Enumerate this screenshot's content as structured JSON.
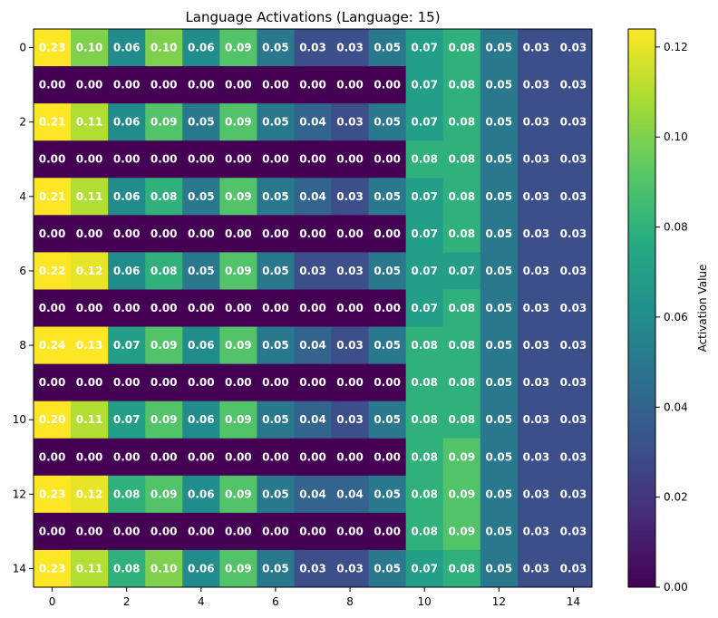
{
  "chart_data": {
    "type": "heatmap",
    "title": "Language Activations (Language: 15)",
    "colorbar_label": "Activation Value",
    "colorbar_ticks": [
      "0.00",
      "0.02",
      "0.04",
      "0.06",
      "0.08",
      "0.10",
      "0.12"
    ],
    "colorbar_range": [
      0,
      0.124
    ],
    "colormap": "viridis",
    "x_ticks": [
      0,
      2,
      4,
      6,
      8,
      10,
      12,
      14
    ],
    "y_ticks": [
      0,
      2,
      4,
      6,
      8,
      10,
      12,
      14
    ],
    "rows": 15,
    "cols": 15,
    "values": [
      [
        0.23,
        0.1,
        0.06,
        0.1,
        0.06,
        0.09,
        0.05,
        0.03,
        0.03,
        0.05,
        0.07,
        0.08,
        0.05,
        0.03,
        0.03
      ],
      [
        0.0,
        0.0,
        0.0,
        0.0,
        0.0,
        0.0,
        0.0,
        0.0,
        0.0,
        0.0,
        0.07,
        0.08,
        0.05,
        0.03,
        0.03
      ],
      [
        0.21,
        0.11,
        0.06,
        0.09,
        0.05,
        0.09,
        0.05,
        0.04,
        0.03,
        0.05,
        0.07,
        0.08,
        0.05,
        0.03,
        0.03
      ],
      [
        0.0,
        0.0,
        0.0,
        0.0,
        0.0,
        0.0,
        0.0,
        0.0,
        0.0,
        0.0,
        0.08,
        0.08,
        0.05,
        0.03,
        0.03
      ],
      [
        0.21,
        0.11,
        0.06,
        0.08,
        0.05,
        0.09,
        0.05,
        0.04,
        0.03,
        0.05,
        0.07,
        0.08,
        0.05,
        0.03,
        0.03
      ],
      [
        0.0,
        0.0,
        0.0,
        0.0,
        0.0,
        0.0,
        0.0,
        0.0,
        0.0,
        0.0,
        0.07,
        0.08,
        0.05,
        0.03,
        0.03
      ],
      [
        0.22,
        0.12,
        0.06,
        0.08,
        0.05,
        0.09,
        0.05,
        0.03,
        0.03,
        0.05,
        0.07,
        0.07,
        0.05,
        0.03,
        0.03
      ],
      [
        0.0,
        0.0,
        0.0,
        0.0,
        0.0,
        0.0,
        0.0,
        0.0,
        0.0,
        0.0,
        0.07,
        0.08,
        0.05,
        0.03,
        0.03
      ],
      [
        0.24,
        0.13,
        0.07,
        0.09,
        0.06,
        0.09,
        0.05,
        0.04,
        0.03,
        0.05,
        0.08,
        0.08,
        0.05,
        0.03,
        0.03
      ],
      [
        0.0,
        0.0,
        0.0,
        0.0,
        0.0,
        0.0,
        0.0,
        0.0,
        0.0,
        0.0,
        0.08,
        0.08,
        0.05,
        0.03,
        0.03
      ],
      [
        0.2,
        0.11,
        0.07,
        0.09,
        0.06,
        0.09,
        0.05,
        0.04,
        0.03,
        0.05,
        0.08,
        0.08,
        0.05,
        0.03,
        0.03
      ],
      [
        0.0,
        0.0,
        0.0,
        0.0,
        0.0,
        0.0,
        0.0,
        0.0,
        0.0,
        0.0,
        0.08,
        0.09,
        0.05,
        0.03,
        0.03
      ],
      [
        0.23,
        0.12,
        0.08,
        0.09,
        0.06,
        0.09,
        0.05,
        0.04,
        0.04,
        0.05,
        0.08,
        0.09,
        0.05,
        0.03,
        0.03
      ],
      [
        0.0,
        0.0,
        0.0,
        0.0,
        0.0,
        0.0,
        0.0,
        0.0,
        0.0,
        0.0,
        0.08,
        0.09,
        0.05,
        0.03,
        0.03
      ],
      [
        0.23,
        0.11,
        0.08,
        0.1,
        0.06,
        0.09,
        0.05,
        0.03,
        0.03,
        0.05,
        0.07,
        0.08,
        0.05,
        0.03,
        0.03
      ]
    ]
  }
}
